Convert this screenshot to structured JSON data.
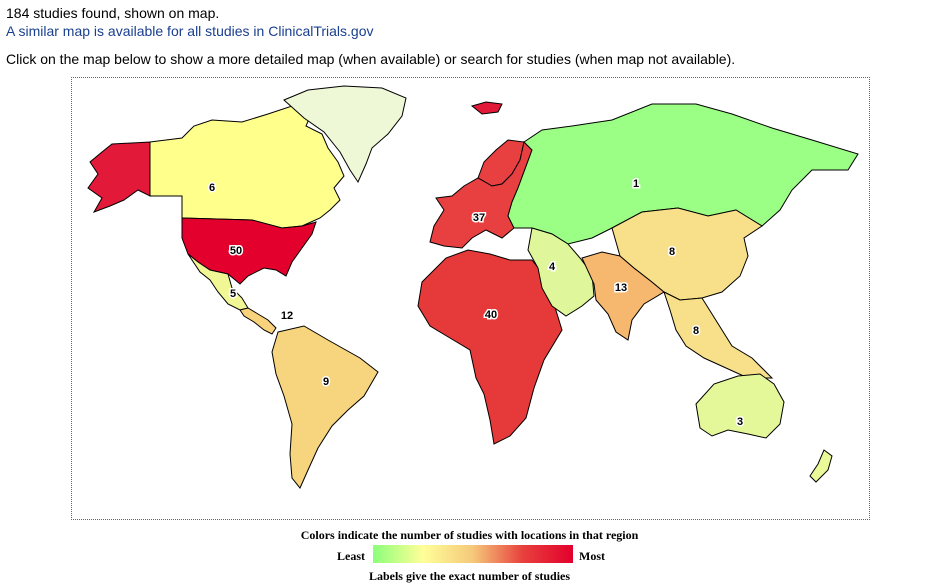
{
  "header": {
    "found_text": "184 studies found, shown on map.",
    "similar_link": "A similar map is available for all studies in ClinicalTrials.gov",
    "instructions": "Click on the map below to show a more detailed map (when available) or search for studies (when map not available)."
  },
  "map": {
    "regions": [
      {
        "id": "alaska",
        "label": "",
        "color": "#e3193a"
      },
      {
        "id": "canada",
        "label": "6",
        "color": "#ffff8c"
      },
      {
        "id": "greenland",
        "label": "",
        "color": "#eef8d6"
      },
      {
        "id": "usa",
        "label": "50",
        "color": "#e3002c"
      },
      {
        "id": "mexico",
        "label": "5",
        "color": "#f2f796"
      },
      {
        "id": "central-america",
        "label": "12",
        "color": "#f9d27c"
      },
      {
        "id": "south-america",
        "label": "9",
        "color": "#f7d47e"
      },
      {
        "id": "europe",
        "label": "37",
        "color": "#e84040"
      },
      {
        "id": "scandinavia",
        "label": "",
        "color": "#e84040"
      },
      {
        "id": "iceland",
        "label": "",
        "color": "#e3193a"
      },
      {
        "id": "russia",
        "label": "1",
        "color": "#9aff84"
      },
      {
        "id": "africa",
        "label": "40",
        "color": "#e63a3a"
      },
      {
        "id": "middle-east",
        "label": "4",
        "color": "#dff79a"
      },
      {
        "id": "south-asia",
        "label": "13",
        "color": "#f6b86e"
      },
      {
        "id": "east-asia",
        "label": "8",
        "color": "#f8e08a"
      },
      {
        "id": "southeast-asia",
        "label": "8",
        "color": "#f8e08a"
      },
      {
        "id": "australia",
        "label": "3",
        "color": "#e4f89a"
      },
      {
        "id": "new-zealand",
        "label": "",
        "color": "#eafa98"
      }
    ]
  },
  "legend": {
    "title": "Colors indicate the number of studies with locations in that region",
    "least": "Least",
    "most": "Most",
    "note": "Labels give the exact number of studies"
  }
}
